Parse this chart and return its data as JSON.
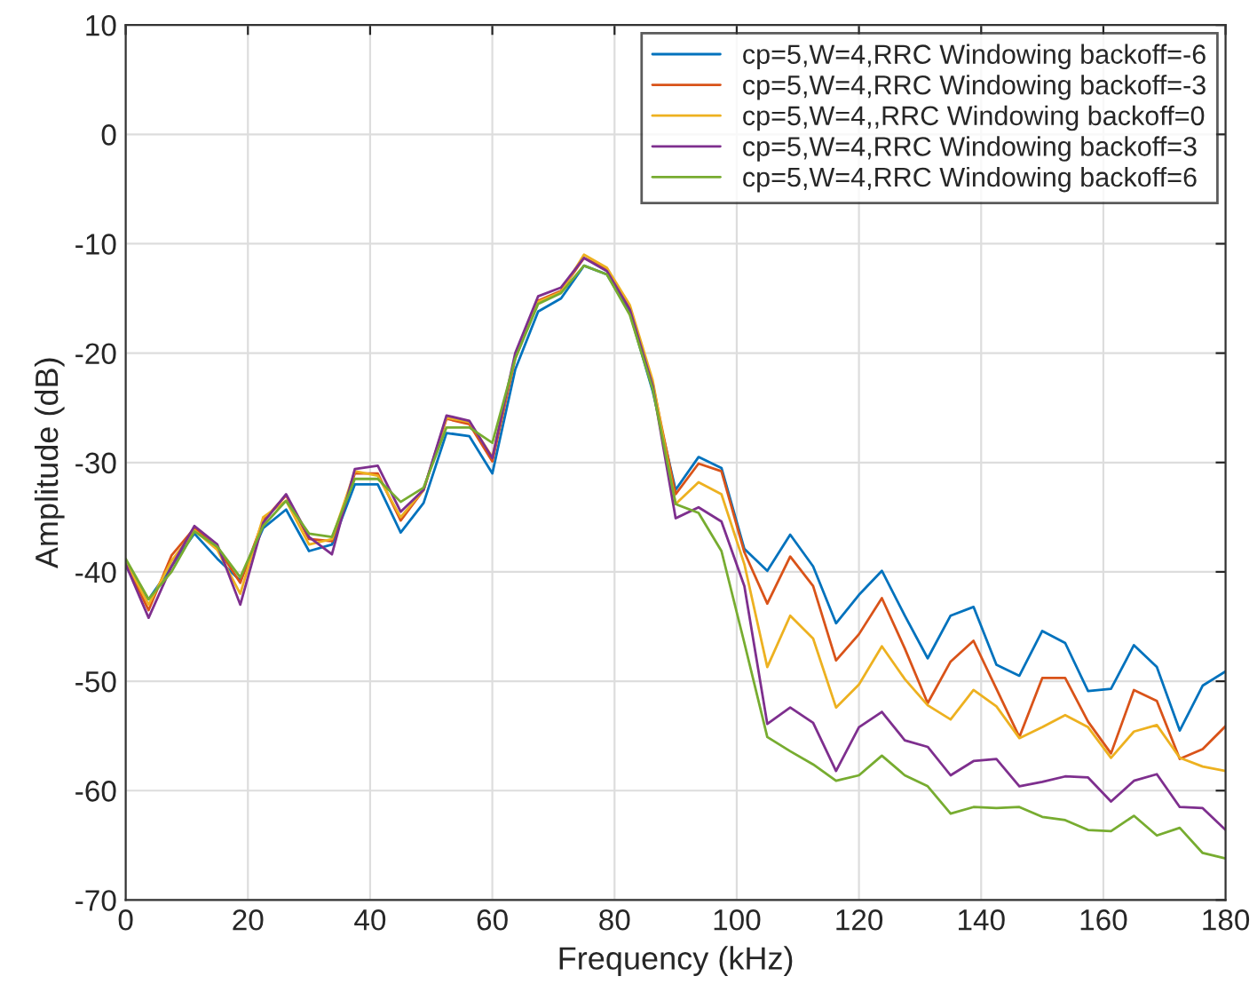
{
  "chart_data": {
    "type": "line",
    "xlabel": "Frequency (kHz)",
    "ylabel": "Amplitude (dB)",
    "x": [
      0,
      3.75,
      7.5,
      11.25,
      15,
      18.75,
      22.5,
      26.25,
      30,
      33.75,
      37.5,
      41.25,
      45,
      48.75,
      52.5,
      56.25,
      60,
      63.75,
      67.5,
      71.25,
      75,
      78.75,
      82.5,
      86.25,
      90,
      93.75,
      97.5,
      101.25,
      105,
      108.75,
      112.5,
      116.25,
      120,
      123.75,
      127.5,
      131.25,
      135,
      138.75,
      142.5,
      146.25,
      150,
      153.75,
      157.5,
      161.25,
      165,
      168.75,
      172.5,
      176.25,
      180
    ],
    "series": [
      {
        "name": "cp=5,W=4,RRC Windowing backoff=-6",
        "color": "#0072bd",
        "values": [
          -39.5,
          -42.5,
          -39.5,
          -36.5,
          -38.8,
          -40.8,
          -36,
          -34.3,
          -38.1,
          -37.5,
          -32,
          -32,
          -36.4,
          -33.7,
          -27.3,
          -27.6,
          -31,
          -21.5,
          -16.2,
          -15,
          -12,
          -12.8,
          -16.3,
          -23.5,
          -32.5,
          -29.5,
          -30.5,
          -37.9,
          -39.9,
          -36.6,
          -39.5,
          -44.7,
          -42.1,
          -39.9,
          -44,
          -47.9,
          -44,
          -43.2,
          -48.5,
          -49.5,
          -45.4,
          -46.5,
          -50.9,
          -50.7,
          -46.7,
          -48.7,
          -54.5,
          -50.4,
          -49.1
        ]
      },
      {
        "name": "cp=5,W=4,RRC Windowing backoff=-3",
        "color": "#d95319",
        "values": [
          -39.2,
          -43.5,
          -38.5,
          -36,
          -37.8,
          -41,
          -35.3,
          -33,
          -37,
          -37.2,
          -31,
          -31,
          -35.3,
          -32.5,
          -26,
          -26.5,
          -29.9,
          -20.5,
          -15.2,
          -14.3,
          -11.3,
          -12.3,
          -15.8,
          -22.8,
          -32.9,
          -30.1,
          -30.8,
          -38.2,
          -42.9,
          -38.6,
          -41.3,
          -48.1,
          -45.7,
          -42.4,
          -47,
          -52,
          -48.2,
          -46.3,
          -50.7,
          -55.1,
          -49.7,
          -49.7,
          -53.7,
          -56.6,
          -50.8,
          -51.8,
          -57.1,
          -56.2,
          -54.1
        ]
      },
      {
        "name": "cp=5,W=4,,RRC Windowing backoff=0",
        "color": "#edb120",
        "values": [
          -39,
          -43,
          -39,
          -36.2,
          -38,
          -42,
          -35,
          -33.5,
          -37.5,
          -37,
          -30.8,
          -31.2,
          -35,
          -32.5,
          -25.9,
          -26.3,
          -29.5,
          -20.3,
          -15.3,
          -14.4,
          -11,
          -12.2,
          -15.6,
          -22.5,
          -33.8,
          -31.8,
          -32.9,
          -39.3,
          -48.7,
          -44,
          -46.1,
          -52.4,
          -50.3,
          -46.8,
          -49.8,
          -52.2,
          -53.5,
          -50.8,
          -52.3,
          -55.2,
          -54.2,
          -53.1,
          -54.2,
          -57,
          -54.6,
          -54,
          -57,
          -57.8,
          -58.2
        ]
      },
      {
        "name": "cp=5,W=4,RRC Windowing backoff=3",
        "color": "#7e2f8e",
        "values": [
          -39.3,
          -44.2,
          -39.5,
          -35.8,
          -37.5,
          -43,
          -35.5,
          -32.9,
          -36.8,
          -38.4,
          -30.6,
          -30.3,
          -34.5,
          -32.5,
          -25.7,
          -26.2,
          -29.6,
          -20,
          -14.8,
          -14,
          -11.3,
          -12.5,
          -16,
          -23,
          -35.1,
          -34.1,
          -35.4,
          -41.3,
          -53.9,
          -52.4,
          -53.8,
          -58.2,
          -54.2,
          -52.8,
          -55.4,
          -56,
          -58.6,
          -57.3,
          -57.1,
          -59.6,
          -59.2,
          -58.7,
          -58.8,
          -61,
          -59.1,
          -58.5,
          -61.5,
          -61.6,
          -63.6
        ]
      },
      {
        "name": "cp=5,W=4,RRC Windowing backoff=6",
        "color": "#77ac30",
        "values": [
          -38.8,
          -42.5,
          -40,
          -36.3,
          -37.7,
          -40.5,
          -35.8,
          -33.5,
          -36.5,
          -36.8,
          -31.5,
          -31.5,
          -33.6,
          -32.3,
          -26.8,
          -26.8,
          -28.2,
          -20.5,
          -15.5,
          -14.5,
          -12,
          -12.8,
          -16.5,
          -23.3,
          -33.8,
          -34.6,
          -38.1,
          -46.5,
          -55.1,
          -56.4,
          -57.6,
          -59.1,
          -58.6,
          -56.8,
          -58.6,
          -59.6,
          -62.1,
          -61.5,
          -61.6,
          -61.5,
          -62.4,
          -62.7,
          -63.6,
          -63.7,
          -62.3,
          -64.1,
          -63.4,
          -65.7,
          -66.2
        ]
      }
    ],
    "xlim": [
      0,
      180
    ],
    "xticks": [
      0,
      20,
      40,
      60,
      80,
      100,
      120,
      140,
      160,
      180
    ],
    "ylim": [
      -70,
      10
    ],
    "yticks": [
      -70,
      -60,
      -50,
      -40,
      -30,
      -20,
      -10,
      0,
      10
    ],
    "grid": true,
    "legend": "top right"
  }
}
